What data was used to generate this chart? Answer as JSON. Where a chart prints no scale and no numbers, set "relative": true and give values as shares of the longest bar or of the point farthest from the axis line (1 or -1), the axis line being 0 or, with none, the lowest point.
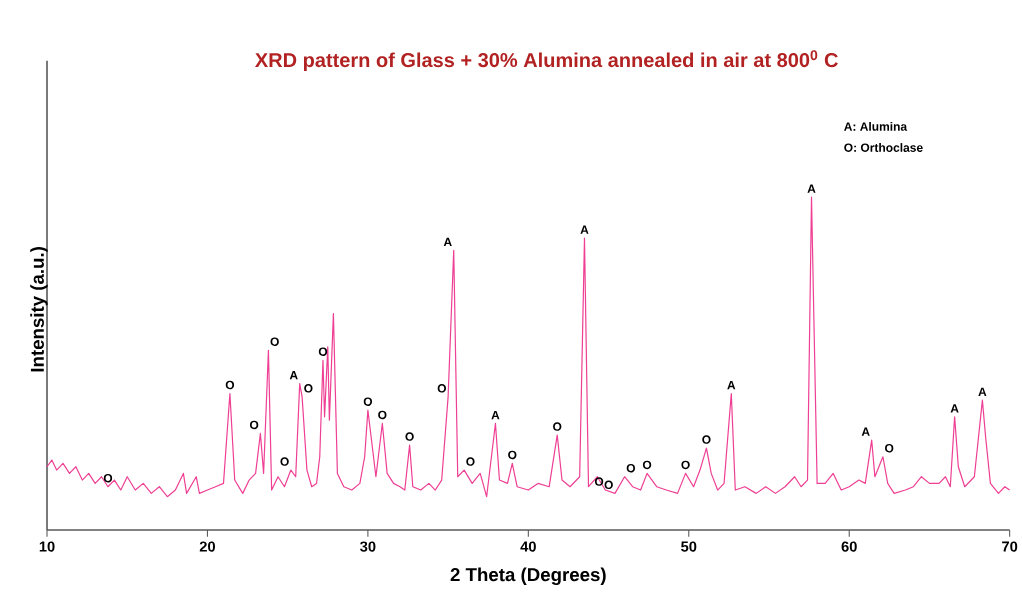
{
  "chart_data": {
    "type": "line",
    "title": "XRD pattern of Glass + 30% Alumina annealed in air at 800$^{0}$ C",
    "xlabel": "2 Theta (Degrees)",
    "ylabel": "Intensity (a.u.)",
    "relative": true,
    "xlim": [
      10,
      70
    ],
    "xticks": [
      10,
      20,
      30,
      40,
      50,
      60,
      70
    ],
    "grid": false,
    "legend": false,
    "marker": "none",
    "line_style": "solid",
    "x": [
      10.0,
      10.3,
      10.6,
      11.0,
      11.4,
      11.8,
      12.2,
      12.6,
      13.0,
      13.4,
      13.8,
      14.2,
      14.6,
      15.0,
      15.5,
      16.0,
      16.5,
      17.0,
      17.5,
      18.0,
      18.5,
      18.7,
      19.3,
      19.5,
      20.0,
      20.5,
      21.0,
      21.4,
      21.7,
      22.2,
      22.6,
      23.0,
      23.3,
      23.5,
      23.8,
      24.0,
      24.4,
      24.8,
      25.2,
      25.5,
      25.75,
      25.9,
      26.2,
      26.5,
      26.8,
      27.0,
      27.2,
      27.3,
      27.5,
      27.6,
      27.85,
      28.1,
      28.5,
      29.0,
      29.5,
      29.8,
      30.0,
      30.2,
      30.5,
      30.9,
      31.2,
      31.6,
      32.0,
      32.3,
      32.6,
      32.8,
      33.3,
      33.8,
      34.2,
      34.6,
      35.0,
      35.35,
      35.6,
      36.0,
      36.5,
      37.0,
      37.4,
      37.95,
      38.2,
      38.7,
      39.0,
      39.3,
      40.0,
      40.6,
      41.3,
      41.8,
      42.1,
      42.6,
      43.2,
      43.5,
      43.75,
      44.3,
      44.8,
      45.4,
      46.0,
      46.5,
      47.0,
      47.4,
      48.0,
      48.6,
      49.3,
      49.8,
      50.3,
      50.7,
      51.1,
      51.4,
      51.8,
      52.2,
      52.65,
      52.9,
      53.5,
      54.2,
      54.8,
      55.4,
      56.0,
      56.6,
      57.0,
      57.4,
      57.65,
      57.8,
      58.0,
      58.5,
      59.0,
      59.5,
      60.0,
      60.6,
      61.0,
      61.4,
      61.6,
      62.1,
      62.4,
      62.8,
      63.5,
      64.0,
      64.5,
      65.0,
      65.6,
      66.0,
      66.3,
      66.57,
      66.8,
      67.2,
      67.8,
      68.3,
      68.5,
      68.8,
      69.3,
      69.7,
      70.0
    ],
    "series": [
      {
        "color": "#ee3f94",
        "values": [
          0.19,
          0.21,
          0.18,
          0.2,
          0.17,
          0.19,
          0.15,
          0.17,
          0.14,
          0.16,
          0.13,
          0.15,
          0.12,
          0.16,
          0.12,
          0.14,
          0.11,
          0.13,
          0.1,
          0.12,
          0.17,
          0.11,
          0.16,
          0.11,
          0.12,
          0.13,
          0.14,
          0.41,
          0.15,
          0.11,
          0.15,
          0.17,
          0.29,
          0.17,
          0.54,
          0.12,
          0.16,
          0.13,
          0.18,
          0.16,
          0.44,
          0.4,
          0.18,
          0.13,
          0.14,
          0.22,
          0.51,
          0.34,
          0.55,
          0.33,
          0.65,
          0.17,
          0.13,
          0.12,
          0.14,
          0.22,
          0.36,
          0.28,
          0.16,
          0.32,
          0.17,
          0.14,
          0.13,
          0.12,
          0.255,
          0.13,
          0.12,
          0.14,
          0.12,
          0.15,
          0.4,
          0.84,
          0.16,
          0.18,
          0.14,
          0.17,
          0.1,
          0.32,
          0.15,
          0.14,
          0.2,
          0.13,
          0.12,
          0.14,
          0.13,
          0.285,
          0.15,
          0.13,
          0.16,
          0.877,
          0.13,
          0.16,
          0.12,
          0.11,
          0.16,
          0.13,
          0.12,
          0.17,
          0.13,
          0.12,
          0.11,
          0.17,
          0.13,
          0.18,
          0.246,
          0.17,
          0.12,
          0.14,
          0.41,
          0.12,
          0.13,
          0.11,
          0.13,
          0.11,
          0.13,
          0.16,
          0.13,
          0.15,
          1.0,
          0.63,
          0.14,
          0.14,
          0.17,
          0.12,
          0.13,
          0.15,
          0.14,
          0.27,
          0.16,
          0.22,
          0.14,
          0.11,
          0.12,
          0.13,
          0.16,
          0.14,
          0.14,
          0.16,
          0.13,
          0.34,
          0.19,
          0.13,
          0.16,
          0.39,
          0.28,
          0.14,
          0.11,
          0.13,
          0.12
        ]
      }
    ],
    "annotations": [
      "A: Alumina",
      "O: Orthoclase",
      {
        "text": "O",
        "x": 13.8,
        "y": 0.13
      },
      {
        "text": "O",
        "x": 21.4,
        "y": 0.41
      },
      {
        "text": "O",
        "x": 23.3,
        "y": 0.29
      },
      {
        "text": "O",
        "x": 23.8,
        "y": 0.54
      },
      {
        "text": "O",
        "x": 25.2,
        "y": 0.18
      },
      {
        "text": "A",
        "x": 25.75,
        "y": 0.44
      },
      {
        "text": "O",
        "x": 25.9,
        "y": 0.4
      },
      {
        "text": "O",
        "x": 27.2,
        "y": 0.51
      },
      {
        "text": "O",
        "x": 30.0,
        "y": 0.36
      },
      {
        "text": "O",
        "x": 30.9,
        "y": 0.32
      },
      {
        "text": "O",
        "x": 32.6,
        "y": 0.255
      },
      {
        "text": "O",
        "x": 35.0,
        "y": 0.4
      },
      {
        "text": "A",
        "x": 35.35,
        "y": 0.84
      },
      {
        "text": "O",
        "x": 36.0,
        "y": 0.18
      },
      {
        "text": "A",
        "x": 37.95,
        "y": 0.32
      },
      {
        "text": "O",
        "x": 39.0,
        "y": 0.2
      },
      {
        "text": "O",
        "x": 41.8,
        "y": 0.285
      },
      {
        "text": "A",
        "x": 43.5,
        "y": 0.877
      },
      {
        "text": "O",
        "x": 44.8,
        "y": 0.12
      },
      {
        "text": "O",
        "x": 45.4,
        "y": 0.11
      },
      {
        "text": "O",
        "x": 46.0,
        "y": 0.16
      },
      {
        "text": "O",
        "x": 47.4,
        "y": 0.17
      },
      {
        "text": "O",
        "x": 49.8,
        "y": 0.17
      },
      {
        "text": "O",
        "x": 51.1,
        "y": 0.246
      },
      {
        "text": "A",
        "x": 52.65,
        "y": 0.41
      },
      {
        "text": "A",
        "x": 57.65,
        "y": 1.0
      },
      {
        "text": "A",
        "x": 61.4,
        "y": 0.27
      },
      {
        "text": "O",
        "x": 62.1,
        "y": 0.22
      },
      {
        "text": "A",
        "x": 66.57,
        "y": 0.34
      },
      {
        "text": "A",
        "x": 68.3,
        "y": 0.39
      }
    ]
  }
}
